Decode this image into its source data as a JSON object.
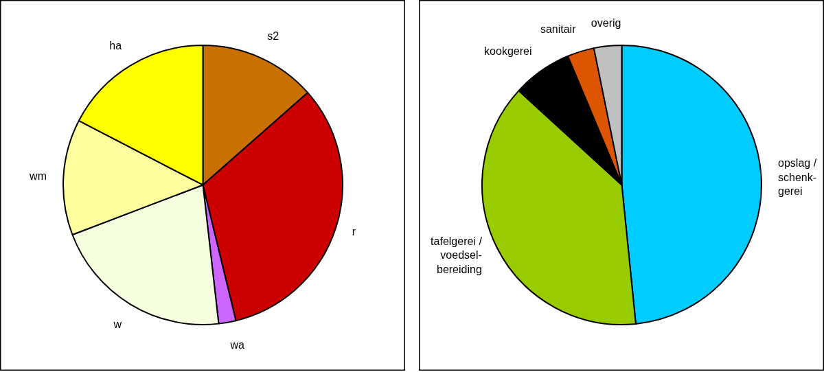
{
  "chart_data": [
    {
      "type": "pie",
      "categories": [
        "s2",
        "r",
        "wa",
        "w",
        "wm",
        "ha"
      ],
      "values": [
        13.5,
        32.7,
        2.0,
        21.0,
        13.4,
        17.4
      ],
      "colors": [
        "#c87000",
        "#cc0000",
        "#cc66ff",
        "#f5ffe0",
        "#ffffa0",
        "#ffff00"
      ]
    },
    {
      "type": "pie",
      "categories": [
        "opslag /\nschenk-\ngerei",
        "tafelgerei /\nvoedsel-\nbereiding",
        "kookgerei",
        "sanitair",
        "overig"
      ],
      "values": [
        48.4,
        38.4,
        6.9,
        3.1,
        3.2
      ],
      "colors": [
        "#00ccff",
        "#99cc00",
        "#000000",
        "#dd5500",
        "#c0c0c0"
      ]
    }
  ]
}
